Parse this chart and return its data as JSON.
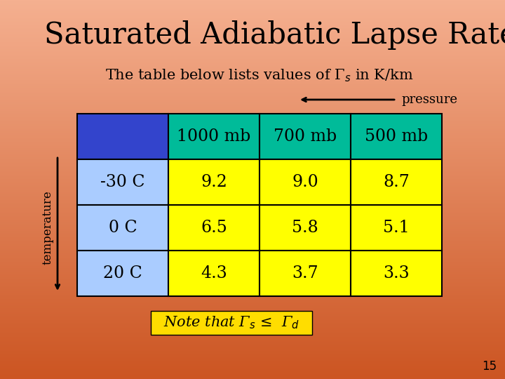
{
  "title": "Saturated Adiabatic Lapse Rate",
  "subtitle": "The table below lists values of Γ$_s$ in K/km",
  "background_gradient": [
    "#F5B090",
    "#D05828"
  ],
  "pressure_label": "pressure",
  "temperature_label": "temperature",
  "col_headers": [
    "1000 mb",
    "700 mb",
    "500 mb"
  ],
  "row_headers": [
    "-30 C",
    "0 C",
    "20 C"
  ],
  "table_data": [
    [
      "9.2",
      "9.0",
      "8.7"
    ],
    [
      "6.5",
      "5.8",
      "5.1"
    ],
    [
      "4.3",
      "3.7",
      "3.3"
    ]
  ],
  "header_bg_blue": "#3344CC",
  "header_bg_teal": "#00BB99",
  "row_header_bg": "#AACCFF",
  "data_bg": "#FFFF00",
  "note_text": "Note that Γ$_s$ ≤  Γ$_d$",
  "note_bg": "#FFDD00",
  "page_num": "15",
  "title_fontsize": 30,
  "subtitle_fontsize": 15,
  "table_fontsize": 17,
  "note_fontsize": 15
}
